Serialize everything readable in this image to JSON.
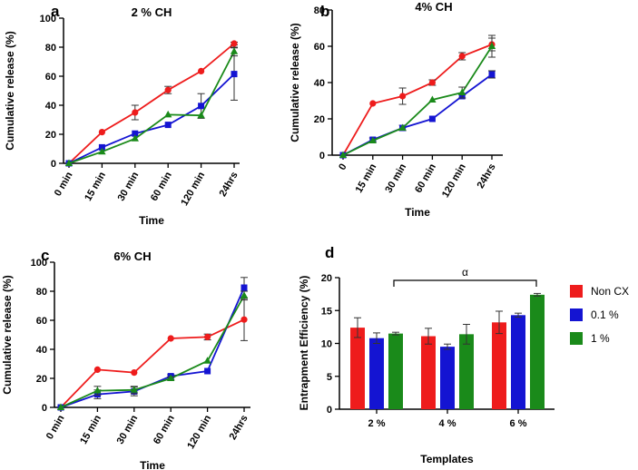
{
  "chart_data": [
    {
      "panel": "a",
      "type": "line",
      "title": "2 % CH",
      "xlabel": "Time",
      "ylabel": "Cumulative release (%)",
      "categories": [
        "0 min",
        "15 min",
        "30 min",
        "60 min",
        "120 min",
        "24hrs"
      ],
      "yticks": [
        "0",
        "20",
        "40",
        "60",
        "80",
        "100"
      ],
      "ylim": [
        0,
        100
      ],
      "series": [
        {
          "name": "Non CX",
          "color": "#ee1c1c",
          "marker": "circle",
          "values": [
            0,
            21.5,
            35,
            50.5,
            63.5,
            82.5
          ],
          "errors": [
            0,
            0.5,
            5,
            2.5,
            0.5,
            1
          ]
        },
        {
          "name": "0.1 %",
          "color": "#1414d2",
          "marker": "square",
          "values": [
            0,
            11,
            20.5,
            26.5,
            39.5,
            61.5
          ],
          "errors": [
            0,
            0.5,
            0.5,
            0.5,
            8.5,
            18
          ]
        },
        {
          "name": "1 %",
          "color": "#1a8a1a",
          "marker": "triangle",
          "values": [
            0,
            8,
            17,
            33.5,
            33,
            77
          ],
          "errors": [
            0,
            0.5,
            0.5,
            0.5,
            0.5,
            3
          ]
        }
      ]
    },
    {
      "panel": "b",
      "type": "line",
      "title": "4% CH",
      "xlabel": "Time",
      "ylabel": "Cumulative release (%)",
      "categories": [
        "0",
        "15 min",
        "30 min",
        "60 min",
        "120 min",
        "24hrs"
      ],
      "yticks": [
        "0",
        "20",
        "40",
        "60",
        "80"
      ],
      "ylim": [
        0,
        80
      ],
      "series": [
        {
          "name": "Non CX",
          "color": "#ee1c1c",
          "marker": "circle",
          "values": [
            0,
            28.5,
            32.5,
            40,
            54.5,
            61
          ],
          "errors": [
            0,
            0.5,
            4.5,
            1.5,
            2,
            3.5
          ]
        },
        {
          "name": "0.1 %",
          "color": "#1414d2",
          "marker": "square",
          "values": [
            0,
            8.5,
            15,
            20,
            32.5,
            44.5
          ],
          "errors": [
            0,
            1,
            1.5,
            0.5,
            1,
            2
          ]
        },
        {
          "name": "1 %",
          "color": "#1a8a1a",
          "marker": "triangle",
          "values": [
            0,
            8,
            15,
            30.5,
            34.5,
            60
          ],
          "errors": [
            0,
            0.5,
            0.5,
            0.5,
            3,
            6
          ]
        }
      ]
    },
    {
      "panel": "c",
      "type": "line",
      "title": "6% CH",
      "xlabel": "Time",
      "ylabel": "Cumulative release (%)",
      "categories": [
        "0 min",
        "15 min",
        "30 min",
        "60 min",
        "120 min",
        "24hrs"
      ],
      "yticks": [
        "0",
        "20",
        "40",
        "60",
        "80",
        "100"
      ],
      "ylim": [
        0,
        100
      ],
      "series": [
        {
          "name": "Non CX",
          "color": "#ee1c1c",
          "marker": "circle",
          "values": [
            0,
            26,
            24,
            47.5,
            48.5,
            60.5
          ],
          "errors": [
            0,
            0.5,
            0.5,
            0.5,
            2,
            14.5
          ]
        },
        {
          "name": "0.1 %",
          "color": "#1414d2",
          "marker": "square",
          "values": [
            0,
            9,
            11,
            21.5,
            25,
            82.5
          ],
          "errors": [
            0,
            3,
            3,
            1,
            0.5,
            7
          ]
        },
        {
          "name": "1 %",
          "color": "#1a8a1a",
          "marker": "triangle",
          "values": [
            0,
            11.5,
            12,
            20,
            32,
            77
          ],
          "errors": [
            0,
            3,
            2.5,
            1,
            0.5,
            3
          ]
        }
      ]
    },
    {
      "panel": "d",
      "type": "bar",
      "title": "",
      "xlabel": "Templates",
      "ylabel": "Entrapment Efficiency (%)",
      "categories": [
        "2 %",
        "4 %",
        "6 %"
      ],
      "yticks": [
        "0",
        "5",
        "10",
        "15",
        "20"
      ],
      "ylim": [
        0,
        20
      ],
      "series": [
        {
          "name": "Non CX",
          "color": "#ee1c1c",
          "values": [
            12.4,
            11.1,
            13.2
          ],
          "errors": [
            1.5,
            1.2,
            1.7
          ]
        },
        {
          "name": "0.1 %",
          "color": "#1414d2",
          "values": [
            10.8,
            9.5,
            14.3
          ],
          "errors": [
            0.8,
            0.4,
            0.3
          ]
        },
        {
          "name": "1 %",
          "color": "#1a8a1a",
          "values": [
            11.5,
            11.4,
            17.4
          ],
          "errors": [
            0.2,
            1.5,
            0.2
          ]
        }
      ],
      "annotation": "α",
      "legend": [
        "Non CX",
        "0.1 %",
        "1 %"
      ]
    }
  ]
}
